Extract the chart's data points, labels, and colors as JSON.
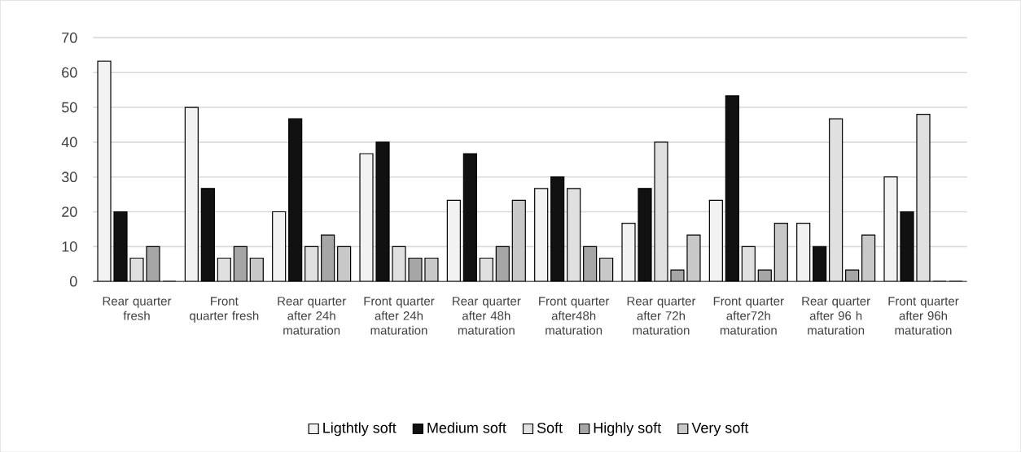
{
  "chart_data": {
    "type": "bar",
    "categories": [
      "Rear quarter fresh",
      "Front quarter fresh",
      "Rear quarter after 24h maturation",
      "Front quarter after 24h maturation",
      "Rear quarter after 48h maturation",
      "Front quarter after48h maturation",
      "Rear quarter after 72h maturation",
      "Front quarter after72h maturation",
      "Rear quarter after 96 h maturation",
      "Front quarter after 96h maturation"
    ],
    "series": [
      {
        "name": "Ligthtly soft",
        "color": "#f2f2f2",
        "values": [
          63.3,
          50,
          20,
          36.7,
          23.3,
          26.7,
          16.7,
          23.3,
          16.7,
          30
        ]
      },
      {
        "name": "Medium soft",
        "color": "#111111",
        "values": [
          20,
          26.7,
          46.7,
          40,
          36.7,
          30,
          26.7,
          53.3,
          10,
          20
        ]
      },
      {
        "name": "Soft",
        "color": "#e0e0e0",
        "values": [
          6.7,
          6.7,
          10,
          10,
          6.7,
          26.7,
          40,
          10,
          46.7,
          48
        ]
      },
      {
        "name": "Highly soft",
        "color": "#a6a6a6",
        "values": [
          10,
          10,
          13.3,
          6.7,
          10,
          10,
          3.3,
          3.3,
          3.3,
          0
        ]
      },
      {
        "name": "Very soft",
        "color": "#c8c8c8",
        "values": [
          0,
          6.7,
          10,
          6.7,
          23.3,
          6.7,
          13.3,
          16.7,
          13.3,
          0
        ]
      }
    ],
    "ylim": [
      0,
      70
    ],
    "yticks": [
      0,
      10,
      20,
      30,
      40,
      50,
      60,
      70
    ],
    "grid": "y",
    "legend": "bottom"
  }
}
